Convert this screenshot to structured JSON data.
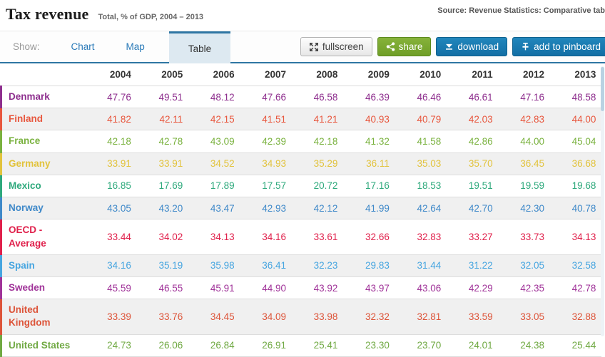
{
  "header": {
    "title": "Tax revenue",
    "subtitle": "Total, % of GDP, 2004 – 2013",
    "source": "Source: Revenue Statistics: Comparative tab"
  },
  "toolbar": {
    "show_label": "Show:",
    "tabs": [
      {
        "label": "Chart",
        "active": false
      },
      {
        "label": "Map",
        "active": false
      },
      {
        "label": "Table",
        "active": true
      }
    ],
    "buttons": {
      "fullscreen": "fullscreen",
      "share": "share",
      "download": "download",
      "pinboard": "add to pinboard"
    },
    "colors": {
      "accent_blue": "#2e76a3",
      "link_blue": "#2a7ab8",
      "button_blue": "#1878ae",
      "button_green": "#7aa930",
      "active_tab_bg": "#dde9f1"
    }
  },
  "chart_data": {
    "type": "table",
    "title": "Tax revenue",
    "subtitle": "Total, % of GDP, 2004 – 2013",
    "columns": [
      "2004",
      "2005",
      "2006",
      "2007",
      "2008",
      "2009",
      "2010",
      "2011",
      "2012",
      "2013"
    ],
    "rows": [
      {
        "country": "Denmark",
        "color": "#8e2f8e",
        "values": [
          "47.76",
          "49.51",
          "48.12",
          "47.66",
          "46.58",
          "46.39",
          "46.46",
          "46.61",
          "47.16",
          "48.58"
        ]
      },
      {
        "country": "Finland",
        "color": "#e8573e",
        "values": [
          "41.82",
          "42.11",
          "42.15",
          "41.51",
          "41.21",
          "40.93",
          "40.79",
          "42.03",
          "42.83",
          "44.00"
        ]
      },
      {
        "country": "France",
        "color": "#7ab23f",
        "values": [
          "42.18",
          "42.78",
          "43.09",
          "42.39",
          "42.18",
          "41.32",
          "41.58",
          "42.86",
          "44.00",
          "45.04"
        ]
      },
      {
        "country": "Germany",
        "color": "#e2c33c",
        "values": [
          "33.91",
          "33.91",
          "34.52",
          "34.93",
          "35.29",
          "36.11",
          "35.03",
          "35.70",
          "36.45",
          "36.68"
        ]
      },
      {
        "country": "Mexico",
        "color": "#2ea97c",
        "values": [
          "16.85",
          "17.69",
          "17.89",
          "17.57",
          "20.72",
          "17.16",
          "18.53",
          "19.51",
          "19.59",
          "19.68"
        ]
      },
      {
        "country": "Norway",
        "color": "#3f89c9",
        "values": [
          "43.05",
          "43.20",
          "43.47",
          "42.93",
          "42.12",
          "41.99",
          "42.64",
          "42.70",
          "42.30",
          "40.78"
        ]
      },
      {
        "country": "OECD - Average",
        "color": "#e0204b",
        "values": [
          "33.44",
          "34.02",
          "34.13",
          "34.16",
          "33.61",
          "32.66",
          "32.83",
          "33.27",
          "33.73",
          "34.13"
        ]
      },
      {
        "country": "Spain",
        "color": "#46a5e0",
        "values": [
          "34.16",
          "35.19",
          "35.98",
          "36.41",
          "32.23",
          "29.83",
          "31.44",
          "31.22",
          "32.05",
          "32.58"
        ]
      },
      {
        "country": "Sweden",
        "color": "#a03399",
        "values": [
          "45.59",
          "46.55",
          "45.91",
          "44.90",
          "43.92",
          "43.97",
          "43.06",
          "42.29",
          "42.35",
          "42.78"
        ]
      },
      {
        "country": "United Kingdom",
        "color": "#dd5439",
        "values": [
          "33.39",
          "33.76",
          "34.45",
          "34.09",
          "33.98",
          "32.32",
          "32.81",
          "33.59",
          "33.05",
          "32.88"
        ]
      },
      {
        "country": "United States",
        "color": "#70a943",
        "values": [
          "24.73",
          "26.06",
          "26.84",
          "26.91",
          "25.41",
          "23.30",
          "23.70",
          "24.01",
          "24.38",
          "25.44"
        ]
      }
    ]
  }
}
